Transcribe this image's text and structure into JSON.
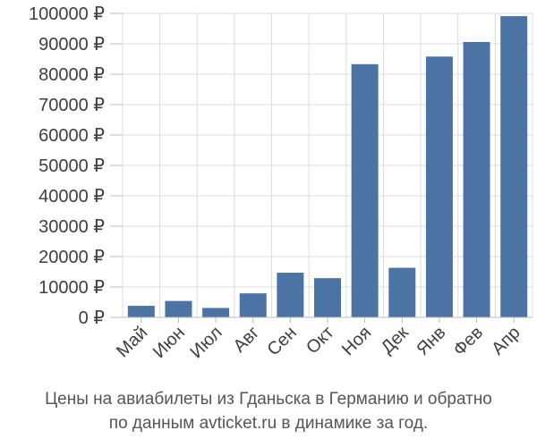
{
  "chart_data": {
    "type": "bar",
    "categories": [
      "Май",
      "Июн",
      "Июл",
      "Авг",
      "Сен",
      "Окт",
      "Ноя",
      "Дек",
      "Янв",
      "Фев",
      "Апр"
    ],
    "series": [
      {
        "values": [
          3800,
          5400,
          3100,
          7900,
          14700,
          12900,
          83300,
          16300,
          85800,
          90600,
          99100
        ]
      }
    ],
    "y_ticks": [
      0,
      10000,
      20000,
      30000,
      40000,
      50000,
      60000,
      70000,
      80000,
      90000,
      100000
    ],
    "y_tick_labels": [
      "0 ₽",
      "10000 ₽",
      "20000 ₽",
      "30000 ₽",
      "40000 ₽",
      "50000 ₽",
      "60000 ₽",
      "70000 ₽",
      "80000 ₽",
      "90000 ₽",
      "100000 ₽"
    ],
    "ylim": [
      0,
      100000
    ],
    "grid": true,
    "bar_color": "#4b74a5",
    "title": "",
    "xlabel": "",
    "ylabel": ""
  },
  "caption": {
    "line1": "Цены на авиабилеты из Гданьска в Германию и обратно",
    "line2": "по данным avticket.ru в динамике за год."
  }
}
